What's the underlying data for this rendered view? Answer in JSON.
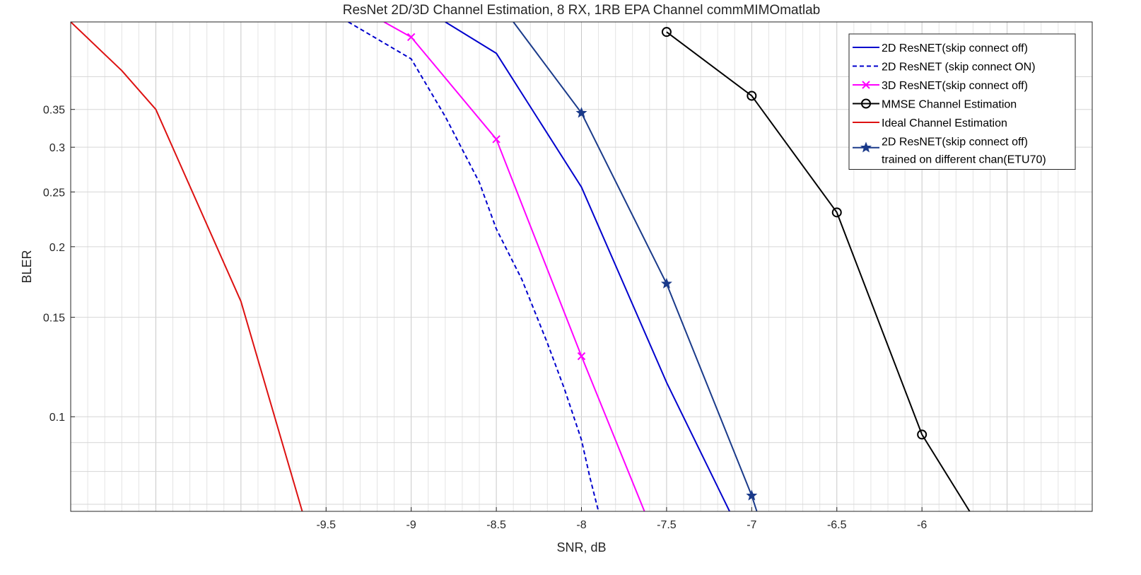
{
  "chart_data": {
    "type": "line",
    "title": "ResNet 2D/3D Channel Estimation, 8 RX, 1RB EPA Channel commMIMOmatlab",
    "xlabel": "SNR, dB",
    "ylabel": "BLER",
    "y_scale": "log",
    "xlim": [
      -11,
      -5
    ],
    "ylim": [
      0.068,
      0.5
    ],
    "xticks": [
      -9.5,
      -9,
      -8.5,
      -8,
      -7.5,
      -7,
      -6.5,
      -6
    ],
    "xtick_labels": [
      "-9.5",
      "-9",
      "-8.5",
      "-8",
      "-7.5",
      "-7",
      "-6.5",
      "-6"
    ],
    "yticks": [
      0.1,
      0.15,
      0.2,
      0.25,
      0.3,
      0.35
    ],
    "ytick_labels": [
      "0.1",
      "0.15",
      "0.2",
      "0.25",
      "0.3",
      "0.35"
    ],
    "grid": "on (major and minor)",
    "legend_position": "top-right",
    "series": [
      {
        "name": "2D ResNET(skip connect off)",
        "color": "#0000cd",
        "line_style": "solid",
        "marker": "none",
        "x": [
          -8.8,
          -8.5,
          -8.0,
          -7.5,
          -7.13
        ],
        "y": [
          0.5,
          0.44,
          0.255,
          0.115,
          0.068
        ]
      },
      {
        "name": "2D ResNET (skip connect ON)",
        "color": "#0000cd",
        "line_style": "dashed",
        "marker": "none",
        "x": [
          -9.37,
          -9.0,
          -8.8,
          -8.6,
          -8.5,
          -8.35,
          -8.2,
          -8.1,
          -8.0,
          -7.95,
          -7.9
        ],
        "y": [
          0.5,
          0.43,
          0.34,
          0.26,
          0.215,
          0.175,
          0.135,
          0.112,
          0.091,
          0.078,
          0.068
        ]
      },
      {
        "name": "3D ResNET(skip connect off)",
        "color": "#ff00ff",
        "line_style": "solid",
        "marker": "x",
        "x": [
          -9.16,
          -9.0,
          -8.5,
          -8.0,
          -7.63
        ],
        "y": [
          0.5,
          0.47,
          0.31,
          0.128,
          0.068
        ]
      },
      {
        "name": "MMSE Channel Estimation",
        "color": "#000000",
        "line_style": "solid",
        "marker": "o",
        "x": [
          -7.5,
          -7.0,
          -6.5,
          -6.0,
          -5.72
        ],
        "y": [
          0.48,
          0.37,
          0.23,
          0.093,
          0.068
        ]
      },
      {
        "name": "Ideal Channel Estimation",
        "color": "#dd1111",
        "line_style": "solid",
        "marker": "none",
        "x": [
          -11.0,
          -10.7,
          -10.5,
          -10.0,
          -9.64
        ],
        "y": [
          0.5,
          0.41,
          0.35,
          0.16,
          0.068
        ]
      },
      {
        "name": "2D ResNET(skip connect off)\ntrained on different chan(ETU70)",
        "name_lines": [
          "2D ResNET(skip connect off)",
          "trained on different chan(ETU70)"
        ],
        "color": "#1a3a8a",
        "line_style": "solid",
        "marker": "star",
        "x": [
          -8.4,
          -8.0,
          -7.5,
          -7.0,
          -6.97
        ],
        "y": [
          0.5,
          0.345,
          0.172,
          0.0725,
          0.068
        ]
      }
    ],
    "marker_indices": {
      "3D ResNET(skip connect off)": [
        1,
        2,
        3
      ],
      "MMSE Channel Estimation": [
        0,
        1,
        2,
        3
      ],
      "2D ResNET(skip connect off)\ntrained on different chan(ETU70)": [
        1,
        2,
        3
      ]
    }
  }
}
